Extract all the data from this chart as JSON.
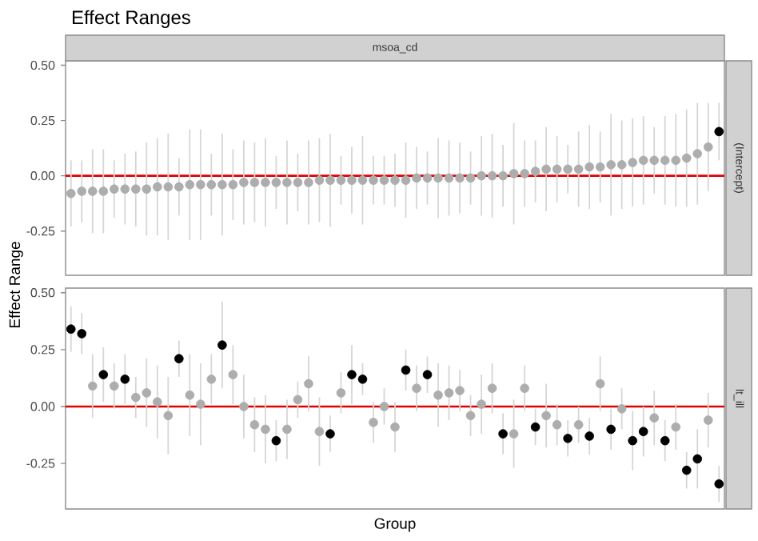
{
  "chart_data": [
    {
      "type": "scatter",
      "title": "Effect Ranges",
      "subtitle": "msoa_cd",
      "ylabel": "Effect Range",
      "annotations": [
        "(Intercept)"
      ],
      "categories": [
        null,
        null,
        null,
        null,
        null,
        null,
        null,
        null,
        null,
        null,
        null,
        null,
        null,
        null,
        null,
        null,
        null,
        null,
        null,
        null,
        null,
        null,
        null,
        null,
        null,
        null,
        null,
        null,
        null,
        null,
        null,
        null,
        null,
        null,
        null,
        null,
        null,
        null,
        null,
        null,
        null,
        null,
        null,
        null,
        null,
        null,
        null,
        null,
        null,
        null,
        null,
        null,
        null,
        null,
        null,
        null,
        null,
        null,
        null,
        null,
        null
      ],
      "values": [
        -0.08,
        -0.07,
        -0.07,
        -0.07,
        -0.06,
        -0.06,
        -0.06,
        -0.06,
        -0.05,
        -0.05,
        -0.05,
        -0.04,
        -0.04,
        -0.04,
        -0.04,
        -0.04,
        -0.03,
        -0.03,
        -0.03,
        -0.03,
        -0.03,
        -0.03,
        -0.03,
        -0.02,
        -0.02,
        -0.02,
        -0.02,
        -0.02,
        -0.02,
        -0.02,
        -0.02,
        -0.02,
        -0.01,
        -0.01,
        -0.01,
        -0.01,
        -0.01,
        -0.01,
        0.0,
        0.0,
        0.0,
        0.01,
        0.01,
        0.02,
        0.03,
        0.03,
        0.03,
        0.03,
        0.04,
        0.04,
        0.05,
        0.05,
        0.06,
        0.07,
        0.07,
        0.07,
        0.07,
        0.08,
        0.1,
        0.13,
        0.2
      ],
      "errors": [
        0.15,
        0.14,
        0.19,
        0.19,
        0.13,
        0.16,
        0.17,
        0.21,
        0.22,
        0.24,
        0.13,
        0.25,
        0.25,
        0.14,
        0.23,
        0.16,
        0.19,
        0.18,
        0.2,
        0.12,
        0.19,
        0.13,
        0.19,
        0.19,
        0.21,
        0.11,
        0.15,
        0.2,
        0.11,
        0.11,
        0.12,
        0.17,
        0.14,
        0.12,
        0.18,
        0.17,
        0.16,
        0.12,
        0.18,
        0.19,
        0.14,
        0.23,
        0.15,
        0.14,
        0.19,
        0.15,
        0.11,
        0.17,
        0.19,
        0.16,
        0.23,
        0.2,
        0.2,
        0.2,
        0.15,
        0.2,
        0.21,
        0.22,
        0.23,
        0.2,
        0.13
      ],
      "colors": [
        "#adadad",
        "#adadad",
        "#adadad",
        "#adadad",
        "#adadad",
        "#adadad",
        "#adadad",
        "#adadad",
        "#adadad",
        "#adadad",
        "#adadad",
        "#adadad",
        "#adadad",
        "#adadad",
        "#adadad",
        "#adadad",
        "#adadad",
        "#adadad",
        "#adadad",
        "#adadad",
        "#adadad",
        "#adadad",
        "#adadad",
        "#adadad",
        "#adadad",
        "#adadad",
        "#adadad",
        "#adadad",
        "#adadad",
        "#adadad",
        "#adadad",
        "#adadad",
        "#adadad",
        "#adadad",
        "#adadad",
        "#adadad",
        "#adadad",
        "#adadad",
        "#adadad",
        "#adadad",
        "#adadad",
        "#adadad",
        "#adadad",
        "#adadad",
        "#adadad",
        "#adadad",
        "#adadad",
        "#adadad",
        "#adadad",
        "#adadad",
        "#adadad",
        "#adadad",
        "#adadad",
        "#adadad",
        "#adadad",
        "#adadad",
        "#adadad",
        "#adadad",
        "#adadad",
        "#adadad",
        "#000000"
      ],
      "ylim": [
        -0.45,
        0.52
      ],
      "yticks": [
        {
          "value": -0.25,
          "label": "-0.25"
        },
        {
          "value": 0,
          "label": "0.00"
        },
        {
          "value": 0.25,
          "label": "0.25"
        },
        {
          "value": 0.5,
          "label": "0.50"
        }
      ],
      "ref_lines": [
        {
          "axis": "y",
          "value": 0,
          "color": "#e00000"
        }
      ],
      "marker": "circle",
      "tick_labels": "y"
    },
    {
      "type": "scatter",
      "xlabel": "Group",
      "annotations": [
        "lt_ill"
      ],
      "categories": [
        null,
        null,
        null,
        null,
        null,
        null,
        null,
        null,
        null,
        null,
        null,
        null,
        null,
        null,
        null,
        null,
        null,
        null,
        null,
        null,
        null,
        null,
        null,
        null,
        null,
        null,
        null,
        null,
        null,
        null,
        null,
        null,
        null,
        null,
        null,
        null,
        null,
        null,
        null,
        null,
        null,
        null,
        null,
        null,
        null,
        null,
        null,
        null,
        null,
        null,
        null,
        null,
        null,
        null,
        null,
        null,
        null,
        null,
        null,
        null,
        null
      ],
      "values": [
        0.34,
        0.32,
        0.09,
        0.14,
        0.09,
        0.12,
        0.04,
        0.06,
        0.02,
        -0.04,
        0.21,
        0.05,
        0.01,
        0.12,
        0.27,
        0.14,
        0.0,
        -0.08,
        -0.1,
        -0.15,
        -0.1,
        0.03,
        0.1,
        -0.11,
        -0.12,
        0.06,
        0.14,
        0.12,
        -0.07,
        0.0,
        -0.09,
        0.16,
        0.08,
        0.14,
        0.05,
        0.06,
        0.07,
        -0.04,
        0.01,
        0.08,
        -0.12,
        -0.12,
        0.08,
        -0.09,
        -0.04,
        -0.08,
        -0.14,
        -0.08,
        -0.13,
        0.1,
        -0.1,
        -0.01,
        -0.15,
        -0.11,
        -0.05,
        -0.15,
        -0.09,
        -0.28,
        -0.23,
        -0.06,
        -0.34
      ],
      "errors": [
        0.1,
        0.09,
        0.14,
        0.12,
        0.1,
        0.11,
        0.09,
        0.15,
        0.16,
        0.17,
        0.08,
        0.18,
        0.18,
        0.11,
        0.19,
        0.13,
        0.14,
        0.12,
        0.15,
        0.09,
        0.13,
        0.08,
        0.12,
        0.15,
        0.08,
        0.09,
        0.13,
        0.07,
        0.09,
        0.08,
        0.11,
        0.09,
        0.1,
        0.08,
        0.14,
        0.12,
        0.09,
        0.09,
        0.13,
        0.11,
        0.09,
        0.15,
        0.1,
        0.08,
        0.14,
        0.09,
        0.08,
        0.08,
        0.08,
        0.12,
        0.09,
        0.09,
        0.13,
        0.11,
        0.12,
        0.09,
        0.1,
        0.08,
        0.13,
        0.12,
        0.08
      ],
      "colors": [
        "#000000",
        "#000000",
        "#adadad",
        "#000000",
        "#adadad",
        "#000000",
        "#adadad",
        "#adadad",
        "#adadad",
        "#adadad",
        "#000000",
        "#adadad",
        "#adadad",
        "#adadad",
        "#000000",
        "#adadad",
        "#adadad",
        "#adadad",
        "#adadad",
        "#000000",
        "#adadad",
        "#adadad",
        "#adadad",
        "#adadad",
        "#000000",
        "#adadad",
        "#000000",
        "#000000",
        "#adadad",
        "#adadad",
        "#adadad",
        "#000000",
        "#adadad",
        "#000000",
        "#adadad",
        "#adadad",
        "#adadad",
        "#adadad",
        "#adadad",
        "#adadad",
        "#000000",
        "#adadad",
        "#adadad",
        "#000000",
        "#adadad",
        "#adadad",
        "#000000",
        "#adadad",
        "#000000",
        "#adadad",
        "#000000",
        "#adadad",
        "#000000",
        "#000000",
        "#adadad",
        "#000000",
        "#adadad",
        "#000000",
        "#000000",
        "#adadad",
        "#000000"
      ],
      "ylim": [
        -0.45,
        0.52
      ],
      "yticks": [
        {
          "value": -0.25,
          "label": "-0.25"
        },
        {
          "value": 0,
          "label": "0.00"
        },
        {
          "value": 0.25,
          "label": "0.25"
        },
        {
          "value": 0.5,
          "label": "0.50"
        }
      ],
      "ref_lines": [
        {
          "axis": "y",
          "value": 0,
          "color": "#e00000"
        }
      ],
      "marker": "circle",
      "tick_labels": "y"
    }
  ]
}
